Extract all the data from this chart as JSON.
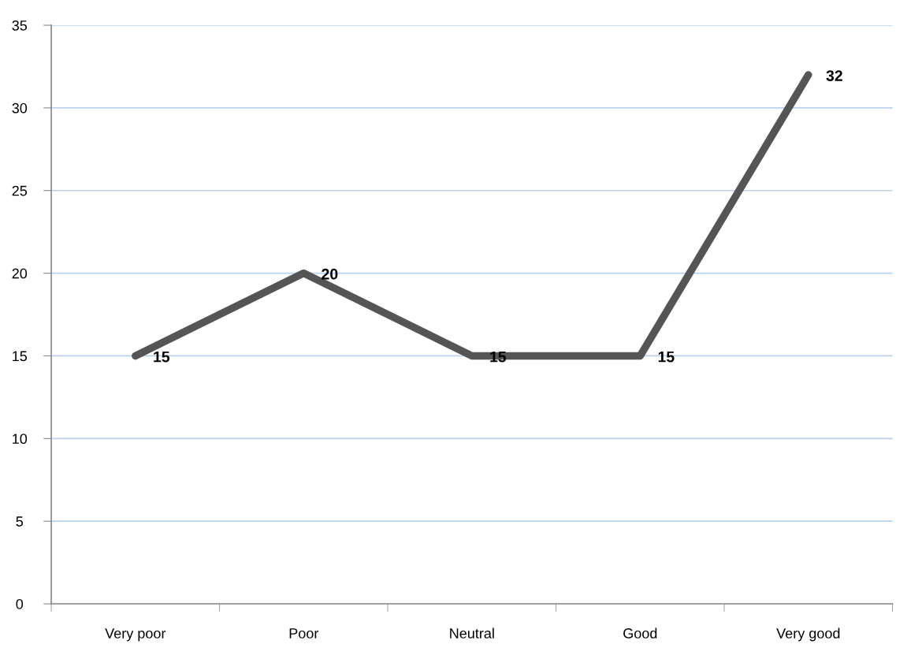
{
  "chart_data": {
    "type": "line",
    "categories": [
      "Very poor",
      "Poor",
      "Neutral",
      "Good",
      "Very good"
    ],
    "series": [
      {
        "color": "#555555",
        "values": [
          15,
          20,
          15,
          15,
          32
        ]
      }
    ],
    "ylim": [
      0,
      35
    ],
    "yticks": [
      0,
      5,
      10,
      15,
      20,
      25,
      30,
      35
    ],
    "grid": "y",
    "data_labels": true,
    "line_style": "solid"
  }
}
